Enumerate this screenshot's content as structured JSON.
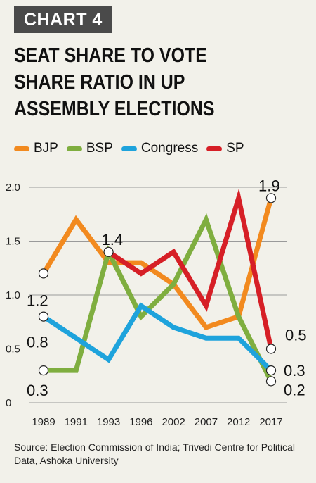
{
  "header": {
    "tag": "CHART 4",
    "title": "SEAT SHARE TO  VOTE\nSHARE RATIO IN UP\nASSEMBLY ELECTIONS"
  },
  "chart_data": {
    "type": "line",
    "categories": [
      "1989",
      "1991",
      "1993",
      "1996",
      "2002",
      "2007",
      "2012",
      "2017"
    ],
    "series": [
      {
        "name": "BJP",
        "color": "#f28a1f",
        "values": [
          1.2,
          1.7,
          1.3,
          1.3,
          1.1,
          0.7,
          0.8,
          1.9
        ]
      },
      {
        "name": "BSP",
        "color": "#7fae3f",
        "values": [
          0.3,
          0.3,
          1.4,
          0.8,
          1.1,
          1.7,
          0.8,
          0.2
        ]
      },
      {
        "name": "Congress",
        "color": "#1ea3dc",
        "values": [
          0.8,
          0.6,
          0.4,
          0.9,
          0.7,
          0.6,
          0.6,
          0.3
        ]
      },
      {
        "name": "SP",
        "color": "#d61f26",
        "values": [
          null,
          null,
          1.4,
          1.2,
          1.4,
          0.9,
          1.9,
          0.5
        ]
      }
    ],
    "yticks": [
      "0",
      "0.5",
      "1.0",
      "1.5",
      "2.0"
    ],
    "ylim": [
      0,
      2.0
    ],
    "grid": true,
    "legend": "top",
    "annotations": [
      {
        "text": "1.2",
        "series": "BJP",
        "index": 0
      },
      {
        "text": "0.8",
        "series": "Congress",
        "index": 0
      },
      {
        "text": "0.3",
        "series": "BSP",
        "index": 0
      },
      {
        "text": "1.4",
        "series": "BSP",
        "index": 2
      },
      {
        "text": "1.9",
        "series": "BJP",
        "index": 7
      },
      {
        "text": "0.5",
        "series": "SP",
        "index": 7
      },
      {
        "text": "0.3",
        "series": "Congress",
        "index": 7
      },
      {
        "text": "0.2",
        "series": "BSP",
        "index": 7
      }
    ]
  },
  "footer": {
    "source": "Source: Election Commission of India; Trivedi Centre for Political Data, Ashoka University"
  }
}
